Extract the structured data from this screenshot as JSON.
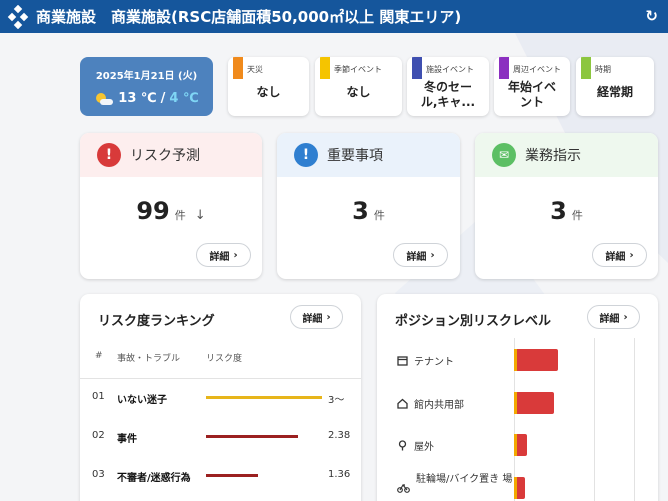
{
  "header": {
    "section": "商業施設",
    "title": "商業施設(RSC店舗面積50,000㎡以上 関東エリア)",
    "refresh_icon": "↻"
  },
  "date_card": {
    "date": "2025年1月21日 (火)",
    "temp_high": "13 ℃",
    "separator": "/",
    "temp_low": "4 ℃"
  },
  "events": [
    {
      "label": "天災",
      "value": "なし",
      "color": "#f08a1c"
    },
    {
      "label": "季節イベント",
      "value": "なし",
      "color": "#f5c400"
    },
    {
      "label": "施設イベント",
      "value": "冬のセー ル,キャ...",
      "color": "#3f4fb0"
    },
    {
      "label": "周辺イベント",
      "value": "年始イベ ント",
      "color": "#8b2fc0"
    },
    {
      "label": "時期",
      "value": "経常期",
      "color": "#8cc63f"
    }
  ],
  "summary": [
    {
      "title": "リスク予測",
      "count": "99",
      "unit": "件",
      "trend": "↓",
      "detail": "詳細",
      "color": "#d83a3a",
      "head_bg": "#fdeeee",
      "icon": "warning-icon",
      "glyph": "!"
    },
    {
      "title": "重要事項",
      "count": "3",
      "unit": "件",
      "detail": "詳細",
      "color": "#2f7fd0",
      "head_bg": "#eaf2fb",
      "icon": "info-icon",
      "glyph": "!"
    },
    {
      "title": "業務指示",
      "count": "3",
      "unit": "件",
      "detail": "詳細",
      "color": "#5cbf64",
      "head_bg": "#eef8ee",
      "icon": "mail-icon",
      "glyph": "✉"
    }
  ],
  "ranking": {
    "title": "リスク度ランキング",
    "detail": "詳細",
    "col_num": "#",
    "col_name": "事故・トラブル",
    "col_risk": "リスク度",
    "rows": [
      {
        "index": "01",
        "name": "いない迷子",
        "value": "3〜",
        "level": 1.0,
        "color": "#e7b51a"
      },
      {
        "index": "02",
        "name": "事件",
        "value": "2.38",
        "level": 0.79,
        "color": "#9b2020"
      },
      {
        "index": "03",
        "name": "不審者/迷惑行為",
        "value": "1.36",
        "level": 0.45,
        "color": "#9b2020"
      }
    ]
  },
  "positions": {
    "title": "ポジション別リスクレベル",
    "detail": "詳細",
    "rows": [
      {
        "label": "テナント",
        "icon": "store-icon",
        "level": 0.86
      },
      {
        "label": "館内共用部",
        "icon": "home-icon",
        "level": 0.78
      },
      {
        "label": "屋外",
        "icon": "tree-icon",
        "level": 0.2
      },
      {
        "label": "駐輪場/バイク置き 場",
        "icon": "bike-icon",
        "level": 0.16
      }
    ]
  }
}
